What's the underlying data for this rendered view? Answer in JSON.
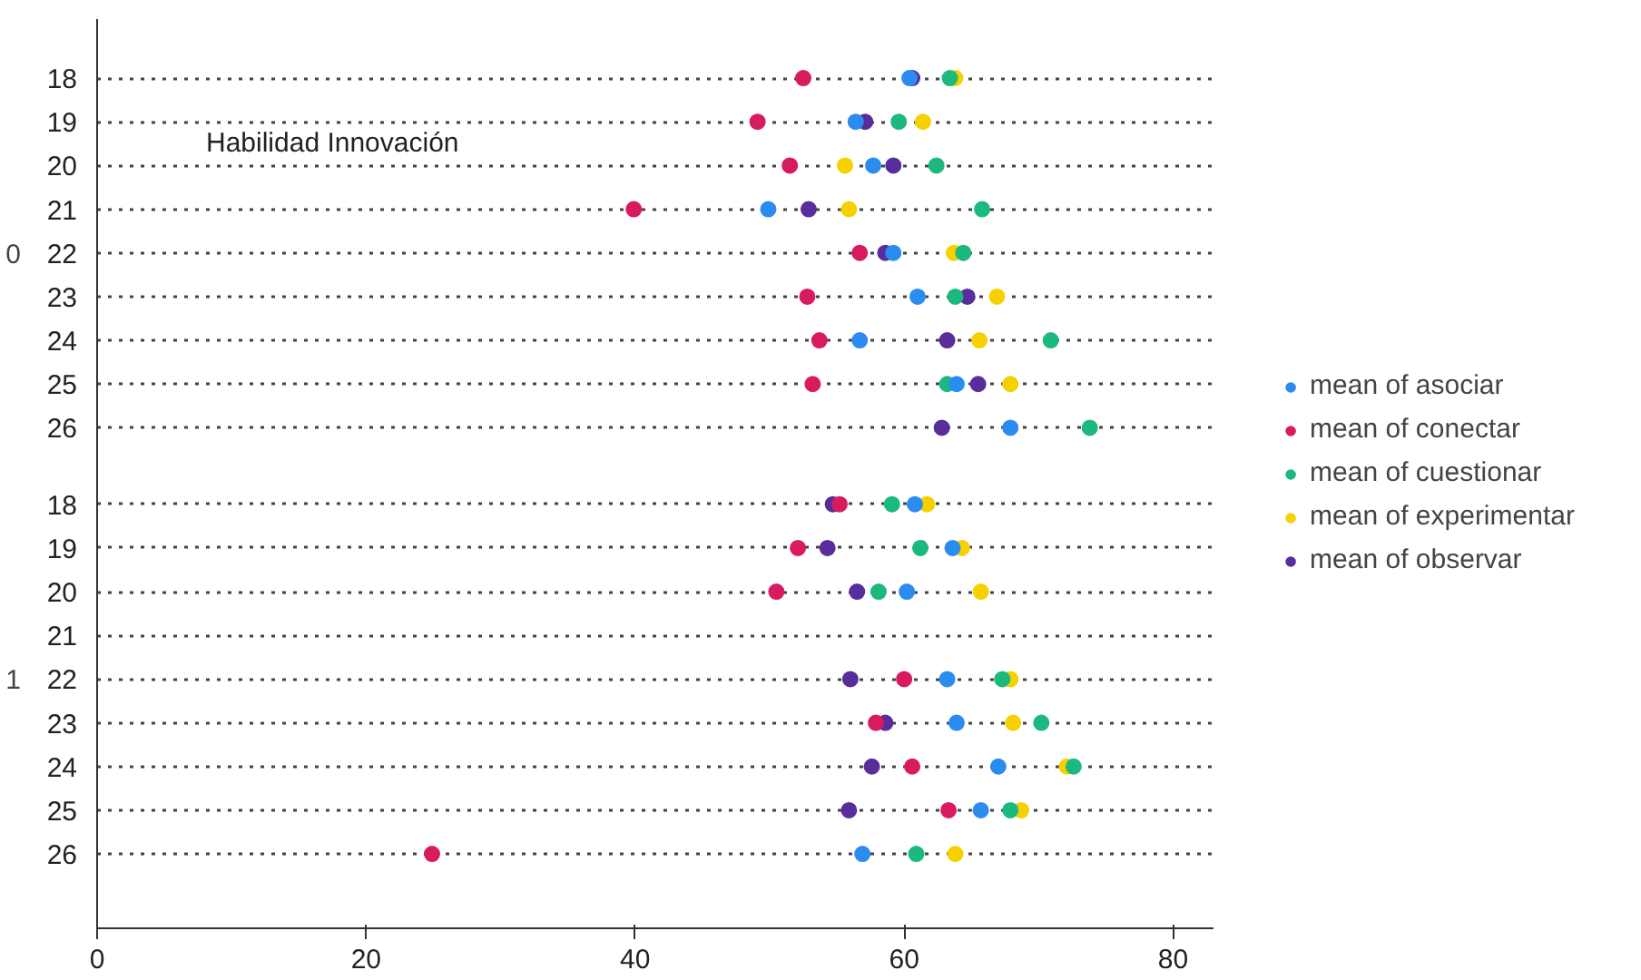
{
  "chart_data": {
    "type": "scatter",
    "orientation": "horizontal",
    "title": "Habilidad Innovación",
    "annotations": [
      "0",
      "1"
    ],
    "categories": [
      "18",
      "19",
      "20",
      "21",
      "22",
      "23",
      "24",
      "25",
      "26",
      "18",
      "19",
      "20",
      "21",
      "22",
      "23",
      "24",
      "25",
      "26"
    ],
    "xlim": [
      0,
      83
    ],
    "xticks": [
      0,
      20,
      40,
      60,
      80
    ],
    "grid": "y",
    "legend": "right",
    "marker": "circle",
    "series": [
      {
        "name": "mean of asociar",
        "color": "#2b8cf0",
        "values": [
          60.4,
          56.4,
          57.7,
          49.9,
          59.2,
          61.0,
          56.7,
          63.9,
          67.9,
          60.8,
          63.6,
          60.2,
          null,
          63.2,
          63.9,
          67.0,
          65.7,
          56.9
        ]
      },
      {
        "name": "mean of conectar",
        "color": "#d81b60",
        "values": [
          52.5,
          49.1,
          51.5,
          39.9,
          56.7,
          52.8,
          53.7,
          53.2,
          null,
          55.2,
          52.1,
          50.5,
          null,
          60.0,
          57.9,
          60.6,
          63.3,
          24.9
        ]
      },
      {
        "name": "mean of cuestionar",
        "color": "#1cb97e",
        "values": [
          63.4,
          59.6,
          62.4,
          65.8,
          64.4,
          63.8,
          70.9,
          63.2,
          73.8,
          59.1,
          61.2,
          58.1,
          null,
          67.3,
          70.2,
          72.6,
          67.9,
          60.9
        ]
      },
      {
        "name": "mean of experimentar",
        "color": "#f7d000",
        "values": [
          63.8,
          61.4,
          55.6,
          55.9,
          63.7,
          66.9,
          65.6,
          67.9,
          null,
          61.7,
          64.3,
          65.7,
          null,
          67.9,
          68.1,
          72.1,
          68.7,
          63.8
        ]
      },
      {
        "name": "mean of observar",
        "color": "#5a2d9c",
        "values": [
          60.6,
          57.1,
          59.2,
          52.9,
          58.6,
          64.7,
          63.2,
          65.5,
          62.8,
          54.7,
          54.3,
          56.5,
          null,
          56.0,
          58.6,
          57.6,
          55.9,
          null
        ]
      }
    ]
  }
}
